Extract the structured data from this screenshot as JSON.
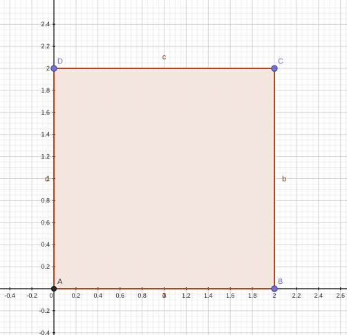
{
  "app": {
    "title": ""
  },
  "colors": {
    "background": "#ffffff",
    "minor_grid": "#eeeeee",
    "major_grid": "#d2d2d2",
    "axis": "#000000",
    "polygon_fill": "#f3e4dc",
    "polygon_stroke": "#b3441e",
    "segment_label": "#9a3a14",
    "free_point": "#6f6fd8",
    "fixed_point": "#2a2a2a"
  },
  "view": {
    "x_range": [
      -0.45,
      2.65
    ],
    "y_range": [
      -0.42,
      2.58
    ],
    "minor_step": 0.05,
    "major_step": 0.2,
    "grid": true
  },
  "axes": {
    "x_tick_labels": [
      "-0.4",
      "-0.2",
      "0",
      "0.2",
      "0.4",
      "0.6",
      "0.8",
      "1",
      "1.2",
      "1.4",
      "1.6",
      "1.8",
      "2",
      "2.2",
      "2.4",
      "2.6"
    ],
    "y_tick_labels": [
      "-0.4",
      "-0.2",
      "0.2",
      "0.4",
      "0.6",
      "0.8",
      "1",
      "1.2",
      "1.4",
      "1.6",
      "1.8",
      "2",
      "2.2",
      "2.4"
    ]
  },
  "points": [
    {
      "name": "A",
      "x": 0,
      "y": 0,
      "style": "fixed"
    },
    {
      "name": "B",
      "x": 2,
      "y": 0,
      "style": "free"
    },
    {
      "name": "C",
      "x": 2,
      "y": 2,
      "style": "free"
    },
    {
      "name": "D",
      "x": 0,
      "y": 2,
      "style": "free"
    }
  ],
  "segments": [
    {
      "name": "a",
      "from": "A",
      "to": "B"
    },
    {
      "name": "b",
      "from": "B",
      "to": "C"
    },
    {
      "name": "c",
      "from": "C",
      "to": "D"
    },
    {
      "name": "d",
      "from": "D",
      "to": "A"
    }
  ],
  "polygon": {
    "vertices": [
      "A",
      "B",
      "C",
      "D"
    ]
  }
}
